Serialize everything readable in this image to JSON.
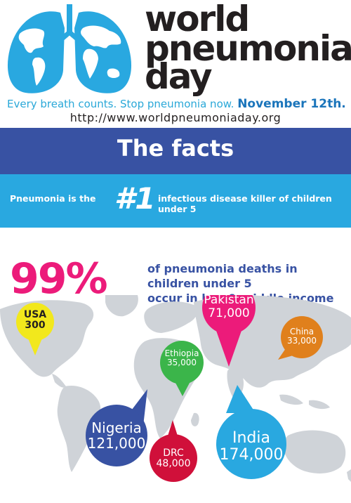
{
  "header": {
    "title_line1": "world",
    "title_line2": "pneumonia",
    "title_line3": "day",
    "tagline": "Every breath counts. Stop pneumonia now.",
    "date": "November 12th.",
    "url": "http://www.worldpneumoniaday.org"
  },
  "facts": {
    "heading": "The facts",
    "fact_pre": "Pneumonia is the",
    "fact_rank": "#1",
    "fact_post": "infectious disease killer of children under 5"
  },
  "stat": {
    "percent": "99%",
    "line1": "of pneumonia deaths in children under 5",
    "line2": "occur in low & middle income countries"
  },
  "pins": [
    {
      "country": "USA",
      "value": "300",
      "color": "#f2e81c",
      "text_color": "#231f20"
    },
    {
      "country": "Pakistan",
      "value": "71,000",
      "color": "#ec1b7a",
      "text_color": "#ffffff"
    },
    {
      "country": "China",
      "value": "33,000",
      "color": "#e0801c",
      "text_color": "#ffffff"
    },
    {
      "country": "Ethiopia",
      "value": "35,000",
      "color": "#3bb54a",
      "text_color": "#ffffff"
    },
    {
      "country": "Nigeria",
      "value": "121,000",
      "color": "#3852a3",
      "text_color": "#ffffff"
    },
    {
      "country": "DRC",
      "value": "48,000",
      "color": "#d0103a",
      "text_color": "#ffffff"
    },
    {
      "country": "India",
      "value": "174,000",
      "color": "#29a8e0",
      "text_color": "#ffffff"
    }
  ],
  "colors": {
    "brand_blue": "#29a8e0",
    "dark_blue": "#3852a3",
    "magenta": "#ec1b7a",
    "map_grey": "#cfd3d8"
  },
  "icons": [
    "lungs-globe-icon"
  ]
}
